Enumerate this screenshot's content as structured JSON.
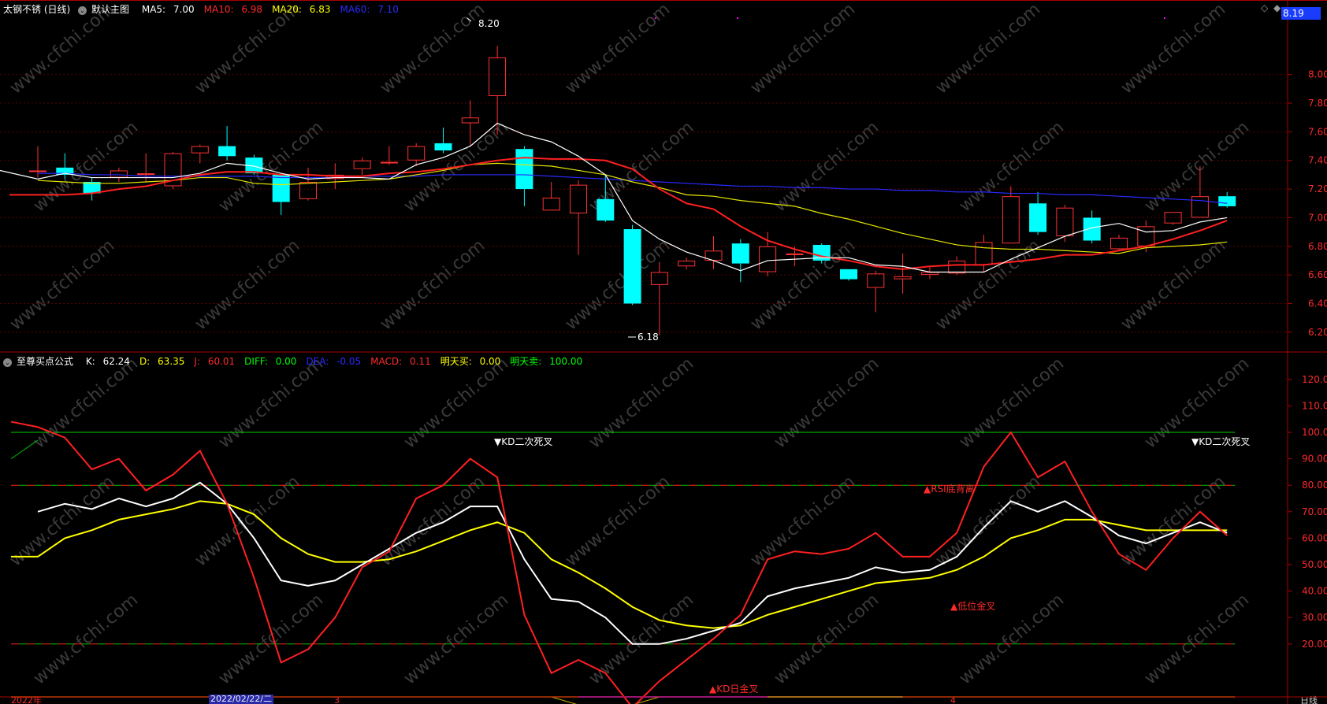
{
  "header": {
    "title": "太钢不锈 (日线)",
    "main_panel_label": "默认主图",
    "ma": [
      {
        "label": "MA5: ",
        "value": "7.00",
        "color": "#ffffff"
      },
      {
        "label": "MA10: ",
        "value": "6.98",
        "color": "#ff2a2a"
      },
      {
        "label": "MA20: ",
        "value": "6.83",
        "color": "#ffff00"
      },
      {
        "label": "MA60: ",
        "value": "7.10",
        "color": "#2a2aff"
      }
    ],
    "current_price": "8.19"
  },
  "indicator": {
    "name": "至尊买点公式",
    "values": [
      {
        "label": "K: ",
        "value": "62.24",
        "color": "#ffffff"
      },
      {
        "label": "D: ",
        "value": "63.35",
        "color": "#ffff00"
      },
      {
        "label": "J: ",
        "value": "60.01",
        "color": "#ff2a2a"
      },
      {
        "label": "DIFF: ",
        "value": "0.00",
        "color": "#00ff00"
      },
      {
        "label": "DEA: ",
        "value": "-0.05",
        "color": "#2a2aff"
      },
      {
        "label": "MACD: ",
        "value": "0.11",
        "color": "#ff2a2a"
      },
      {
        "label": "明天买: ",
        "value": "0.00",
        "color": "#ffff00"
      },
      {
        "label": "明天卖: ",
        "value": "100.00",
        "color": "#00ff00"
      }
    ]
  },
  "axes": {
    "price_ticks": [
      "8.00",
      "7.80",
      "7.60",
      "7.40",
      "7.20",
      "7.00",
      "6.80",
      "6.60",
      "6.40",
      "6.20"
    ],
    "ind_ticks": [
      "120.0",
      "110.0",
      "100.0",
      "90.00",
      "80.00",
      "70.00",
      "60.00",
      "50.00",
      "40.00",
      "30.00",
      "20.00"
    ],
    "x_labels": [
      "2022年",
      "2022/02/22/二",
      "3",
      "4"
    ],
    "period": "日线"
  },
  "watermark": "www.cfchi.com",
  "annotations": {
    "high": "8.20",
    "low": "6.18",
    "kd_dead_1": "▼KD二次死叉",
    "kd_dead_2": "▼KD二次死叉",
    "rsi_div": "▲RSI底背离",
    "low_cross": "▲低位金叉",
    "kd_cross": "▲KD日金叉"
  },
  "chart_data": [
    {
      "type": "candlestick",
      "ylim": [
        6.1,
        8.4
      ],
      "candles": [
        {
          "o": 7.33,
          "h": 7.5,
          "l": 7.28,
          "c": 7.33
        },
        {
          "o": 7.35,
          "h": 7.45,
          "l": 7.27,
          "c": 7.3
        },
        {
          "o": 7.25,
          "h": 7.28,
          "l": 7.12,
          "c": 7.17
        },
        {
          "o": 7.28,
          "h": 7.35,
          "l": 7.25,
          "c": 7.33
        },
        {
          "o": 7.3,
          "h": 7.45,
          "l": 7.25,
          "c": 7.31
        },
        {
          "o": 7.22,
          "h": 7.46,
          "l": 7.2,
          "c": 7.45
        },
        {
          "o": 7.45,
          "h": 7.51,
          "l": 7.38,
          "c": 7.5
        },
        {
          "o": 7.5,
          "h": 7.64,
          "l": 7.4,
          "c": 7.43
        },
        {
          "o": 7.42,
          "h": 7.44,
          "l": 7.3,
          "c": 7.31
        },
        {
          "o": 7.3,
          "h": 7.3,
          "l": 7.02,
          "c": 7.11
        },
        {
          "o": 7.13,
          "h": 7.35,
          "l": 7.12,
          "c": 7.25
        },
        {
          "o": 7.27,
          "h": 7.38,
          "l": 7.2,
          "c": 7.3
        },
        {
          "o": 7.34,
          "h": 7.42,
          "l": 7.3,
          "c": 7.4
        },
        {
          "o": 7.38,
          "h": 7.5,
          "l": 7.37,
          "c": 7.39
        },
        {
          "o": 7.4,
          "h": 7.52,
          "l": 7.36,
          "c": 7.5
        },
        {
          "o": 7.52,
          "h": 7.63,
          "l": 7.45,
          "c": 7.47
        },
        {
          "o": 7.66,
          "h": 7.82,
          "l": 7.5,
          "c": 7.7
        },
        {
          "o": 7.85,
          "h": 8.2,
          "l": 7.58,
          "c": 8.12
        },
        {
          "o": 7.48,
          "h": 7.5,
          "l": 7.08,
          "c": 7.2
        },
        {
          "o": 7.05,
          "h": 7.25,
          "l": 7.05,
          "c": 7.14
        },
        {
          "o": 7.03,
          "h": 7.26,
          "l": 6.74,
          "c": 7.23
        },
        {
          "o": 7.13,
          "h": 7.3,
          "l": 6.97,
          "c": 6.98
        },
        {
          "o": 6.92,
          "h": 6.95,
          "l": 6.39,
          "c": 6.4
        },
        {
          "o": 6.53,
          "h": 6.69,
          "l": 6.18,
          "c": 6.62
        },
        {
          "o": 6.66,
          "h": 6.72,
          "l": 6.64,
          "c": 6.7
        },
        {
          "o": 6.7,
          "h": 6.87,
          "l": 6.64,
          "c": 6.77
        },
        {
          "o": 6.82,
          "h": 6.85,
          "l": 6.55,
          "c": 6.68
        },
        {
          "o": 6.62,
          "h": 6.9,
          "l": 6.59,
          "c": 6.8
        },
        {
          "o": 6.75,
          "h": 6.8,
          "l": 6.66,
          "c": 6.75
        },
        {
          "o": 6.81,
          "h": 6.82,
          "l": 6.68,
          "c": 6.7
        },
        {
          "o": 6.64,
          "h": 6.64,
          "l": 6.56,
          "c": 6.57
        },
        {
          "o": 6.51,
          "h": 6.63,
          "l": 6.34,
          "c": 6.61
        },
        {
          "o": 6.57,
          "h": 6.75,
          "l": 6.47,
          "c": 6.59
        },
        {
          "o": 6.6,
          "h": 6.66,
          "l": 6.57,
          "c": 6.62
        },
        {
          "o": 6.61,
          "h": 6.73,
          "l": 6.6,
          "c": 6.7
        },
        {
          "o": 6.67,
          "h": 6.88,
          "l": 6.62,
          "c": 6.83
        },
        {
          "o": 6.82,
          "h": 7.22,
          "l": 6.82,
          "c": 7.15
        },
        {
          "o": 7.1,
          "h": 7.18,
          "l": 6.88,
          "c": 6.9
        },
        {
          "o": 6.87,
          "h": 7.09,
          "l": 6.83,
          "c": 7.07
        },
        {
          "o": 7.0,
          "h": 7.05,
          "l": 6.82,
          "c": 6.84
        },
        {
          "o": 6.78,
          "h": 6.88,
          "l": 6.77,
          "c": 6.86
        },
        {
          "o": 6.8,
          "h": 6.98,
          "l": 6.76,
          "c": 6.94
        },
        {
          "o": 6.96,
          "h": 7.04,
          "l": 6.95,
          "c": 7.04
        },
        {
          "o": 7.0,
          "h": 7.36,
          "l": 7.0,
          "c": 7.15
        },
        {
          "o": 7.15,
          "h": 7.18,
          "l": 7.07,
          "c": 7.08
        }
      ],
      "ma5": [
        7.27,
        7.31,
        7.28,
        7.28,
        7.28,
        7.28,
        7.31,
        7.38,
        7.36,
        7.31,
        7.27,
        7.28,
        7.28,
        7.27,
        7.37,
        7.42,
        7.5,
        7.66,
        7.58,
        7.53,
        7.43,
        7.3,
        6.98,
        6.85,
        6.76,
        6.7,
        6.63,
        6.7,
        6.71,
        6.72,
        6.72,
        6.67,
        6.66,
        6.62,
        6.62,
        6.62,
        6.71,
        6.79,
        6.87,
        6.93,
        6.96,
        6.9,
        6.91,
        6.97,
        7.0
      ],
      "ma10": [
        7.16,
        7.16,
        7.17,
        7.2,
        7.22,
        7.26,
        7.3,
        7.32,
        7.32,
        7.3,
        7.3,
        7.29,
        7.29,
        7.31,
        7.32,
        7.34,
        7.37,
        7.4,
        7.42,
        7.41,
        7.41,
        7.4,
        7.34,
        7.2,
        7.1,
        7.06,
        6.94,
        6.84,
        6.78,
        6.73,
        6.7,
        6.66,
        6.64,
        6.66,
        6.67,
        6.67,
        6.69,
        6.71,
        6.74,
        6.74,
        6.77,
        6.8,
        6.85,
        6.91,
        6.98
      ],
      "ma20": [
        7.26,
        7.25,
        7.24,
        7.24,
        7.25,
        7.26,
        7.28,
        7.28,
        7.24,
        7.23,
        7.24,
        7.25,
        7.26,
        7.27,
        7.3,
        7.33,
        7.37,
        7.38,
        7.37,
        7.36,
        7.33,
        7.3,
        7.25,
        7.21,
        7.16,
        7.15,
        7.12,
        7.1,
        7.08,
        7.03,
        6.99,
        6.94,
        6.89,
        6.85,
        6.81,
        6.79,
        6.78,
        6.78,
        6.77,
        6.76,
        6.75,
        6.79,
        6.8,
        6.81,
        6.83
      ],
      "ma60": [
        7.31,
        7.31,
        7.3,
        7.3,
        7.29,
        7.29,
        7.29,
        7.29,
        7.29,
        7.28,
        7.28,
        7.28,
        7.29,
        7.29,
        7.29,
        7.3,
        7.3,
        7.3,
        7.3,
        7.29,
        7.28,
        7.27,
        7.26,
        7.25,
        7.24,
        7.23,
        7.22,
        7.22,
        7.21,
        7.21,
        7.2,
        7.2,
        7.19,
        7.19,
        7.18,
        7.18,
        7.17,
        7.17,
        7.16,
        7.16,
        7.15,
        7.14,
        7.13,
        7.12,
        7.1
      ]
    },
    {
      "type": "line",
      "ylim": [
        0,
        125
      ],
      "K": [
        70,
        73,
        71,
        75,
        72,
        75,
        81,
        73,
        60,
        44,
        42,
        44,
        50,
        56,
        62,
        66,
        72,
        72,
        52,
        37,
        36,
        30,
        20,
        20,
        22,
        25,
        28,
        38,
        41,
        43,
        45,
        49,
        47,
        48,
        53,
        64,
        74,
        70,
        74,
        68,
        61,
        58,
        62,
        66,
        62
      ],
      "D": [
        53,
        60,
        63,
        67,
        69,
        71,
        74,
        73,
        69,
        60,
        54,
        51,
        51,
        52,
        55,
        59,
        63,
        66,
        62,
        52,
        47,
        41,
        34,
        29,
        27,
        26,
        27,
        31,
        34,
        37,
        40,
        43,
        44,
        45,
        48,
        53,
        60,
        63,
        67,
        67,
        65,
        63,
        63,
        63,
        63
      ],
      "J": [
        102,
        98,
        86,
        90,
        78,
        84,
        93,
        73,
        45,
        13,
        18,
        30,
        49,
        55,
        75,
        80,
        90,
        83,
        31,
        9,
        14,
        9,
        -4,
        6,
        14,
        22,
        31,
        52,
        55,
        54,
        56,
        62,
        53,
        53,
        62,
        87,
        100,
        83,
        89,
        70,
        54,
        48,
        60,
        70,
        61
      ],
      "ref_lines": [
        {
          "value": 100,
          "color": "#00d000"
        },
        {
          "value": 80,
          "color": "#00c000"
        },
        {
          "value": 20,
          "color": "#ff2a2a"
        }
      ]
    }
  ]
}
